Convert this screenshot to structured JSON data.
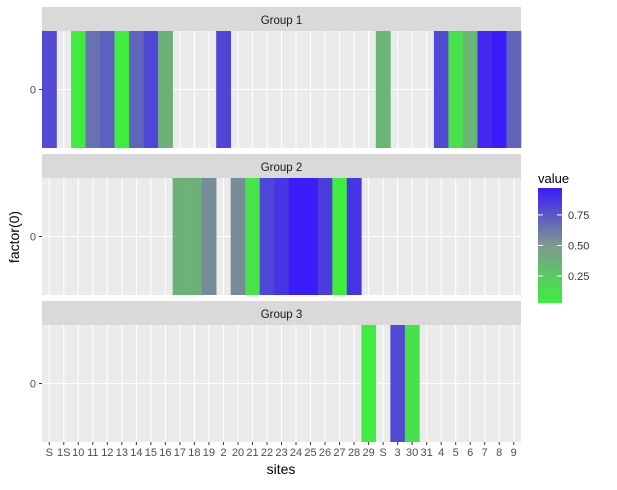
{
  "chart_data": {
    "type": "heatmap",
    "xlabel": "sites",
    "ylabel": "factor(0)",
    "y_tick_label": "0",
    "x_tick_labels": [
      "S",
      "1",
      "10",
      "11",
      "12",
      "13",
      "14",
      "15",
      "16",
      "17",
      "18",
      "19",
      "2",
      "20",
      "21",
      "22",
      "23",
      "24",
      "25",
      "26",
      "27",
      "28",
      "29",
      "3",
      "30",
      "31",
      "4",
      "5",
      "6",
      "7",
      "8",
      "9"
    ],
    "x_tick_labels_rendered": [
      "S",
      "1S",
      "10",
      "11",
      "12",
      "13",
      "14",
      "15",
      "16",
      "17",
      "18",
      "19",
      "2",
      "20",
      "21",
      "22",
      "23",
      "24",
      "25",
      "26",
      "27",
      "28",
      "29",
      "S",
      "3",
      "30",
      "31",
      "4",
      "5",
      "6",
      "7",
      "8",
      "9"
    ],
    "legend": {
      "title": "value",
      "position": "right",
      "ticks": [
        0.25,
        0.5,
        0.75
      ],
      "tick_labels": [
        "0.25",
        "0.50",
        "0.75"
      ],
      "range": [
        0.03,
        0.97
      ],
      "low_color": "#3df03d",
      "mid_color": "#7d9b8e",
      "high_color": "#3a1cf8"
    },
    "panels": [
      {
        "title": "Group 1",
        "cells": [
          {
            "site": "S",
            "value": 0.8
          },
          {
            "site": "10",
            "value": 0.05
          },
          {
            "site": "11",
            "value": 0.65
          },
          {
            "site": "12",
            "value": 0.72
          },
          {
            "site": "13",
            "value": 0.05
          },
          {
            "site": "14",
            "value": 0.7
          },
          {
            "site": "15",
            "value": 0.82
          },
          {
            "site": "16",
            "value": 0.38
          },
          {
            "site": "2",
            "value": 0.82
          },
          {
            "site": "S",
            "value": 0.35
          },
          {
            "site": "4",
            "value": 0.8
          },
          {
            "site": "5",
            "value": 0.12
          },
          {
            "site": "6",
            "value": 0.35
          },
          {
            "site": "7",
            "value": 0.92
          },
          {
            "site": "8",
            "value": 0.97
          },
          {
            "site": "9",
            "value": 0.7
          }
        ]
      },
      {
        "title": "Group 2",
        "cells": [
          {
            "site": "17",
            "value": 0.38
          },
          {
            "site": "18",
            "value": 0.38
          },
          {
            "site": "19",
            "value": 0.55
          },
          {
            "site": "20",
            "value": 0.55
          },
          {
            "site": "21",
            "value": 0.1
          },
          {
            "site": "22",
            "value": 0.82
          },
          {
            "site": "23",
            "value": 0.88
          },
          {
            "site": "24",
            "value": 0.97
          },
          {
            "site": "25",
            "value": 0.97
          },
          {
            "site": "26",
            "value": 0.85
          },
          {
            "site": "27",
            "value": 0.05
          },
          {
            "site": "28",
            "value": 0.88
          }
        ]
      },
      {
        "title": "Group 3",
        "cells": [
          {
            "site": "29",
            "value": 0.05
          },
          {
            "site": "3",
            "value": 0.8
          },
          {
            "site": "30",
            "value": 0.12
          }
        ]
      }
    ],
    "grid": true
  }
}
